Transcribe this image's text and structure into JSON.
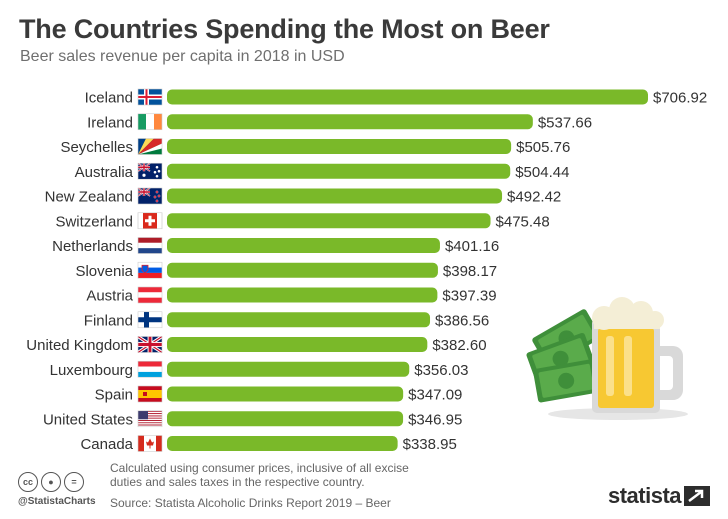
{
  "title": "The Countries Spending the Most on Beer",
  "subtitle": "Beer sales revenue per capita in 2018 in USD",
  "chart_data": {
    "type": "bar",
    "orientation": "horizontal",
    "categories": [
      "Iceland",
      "Ireland",
      "Seychelles",
      "Australia",
      "New Zealand",
      "Switzerland",
      "Netherlands",
      "Slovenia",
      "Austria",
      "Finland",
      "United Kingdom",
      "Luxembourg",
      "Spain",
      "United States",
      "Canada"
    ],
    "values": [
      706.92,
      537.66,
      505.76,
      504.44,
      492.42,
      475.48,
      401.16,
      398.17,
      397.39,
      386.56,
      382.6,
      356.03,
      347.09,
      346.95,
      338.95
    ],
    "value_labels": [
      "$706.92",
      "$537.66",
      "$505.76",
      "$504.44",
      "$492.42",
      "$475.48",
      "$401.16",
      "$398.17",
      "$397.39",
      "$386.56",
      "$382.60",
      "$356.03",
      "$347.09",
      "$346.95",
      "$338.95"
    ],
    "flags": [
      "iceland-flag",
      "ireland-flag",
      "seychelles-flag",
      "australia-flag",
      "new-zealand-flag",
      "switzerland-flag",
      "netherlands-flag",
      "slovenia-flag",
      "austria-flag",
      "finland-flag",
      "united-kingdom-flag",
      "luxembourg-flag",
      "spain-flag",
      "united-states-flag",
      "canada-flag"
    ],
    "bar_color": "#7ab929",
    "grid": false
  },
  "footer": {
    "note": "Calculated using consumer prices, inclusive of all excise duties and sales taxes in the respective country.",
    "source": "Source: Statista Alcoholic Drinks Report 2019 – Beer",
    "handle": "@StatistaCharts",
    "license_icons": [
      "cc-icon",
      "by-icon",
      "nd-icon"
    ],
    "brand": "statista"
  },
  "illustration": "beer-mug-with-money-icon"
}
